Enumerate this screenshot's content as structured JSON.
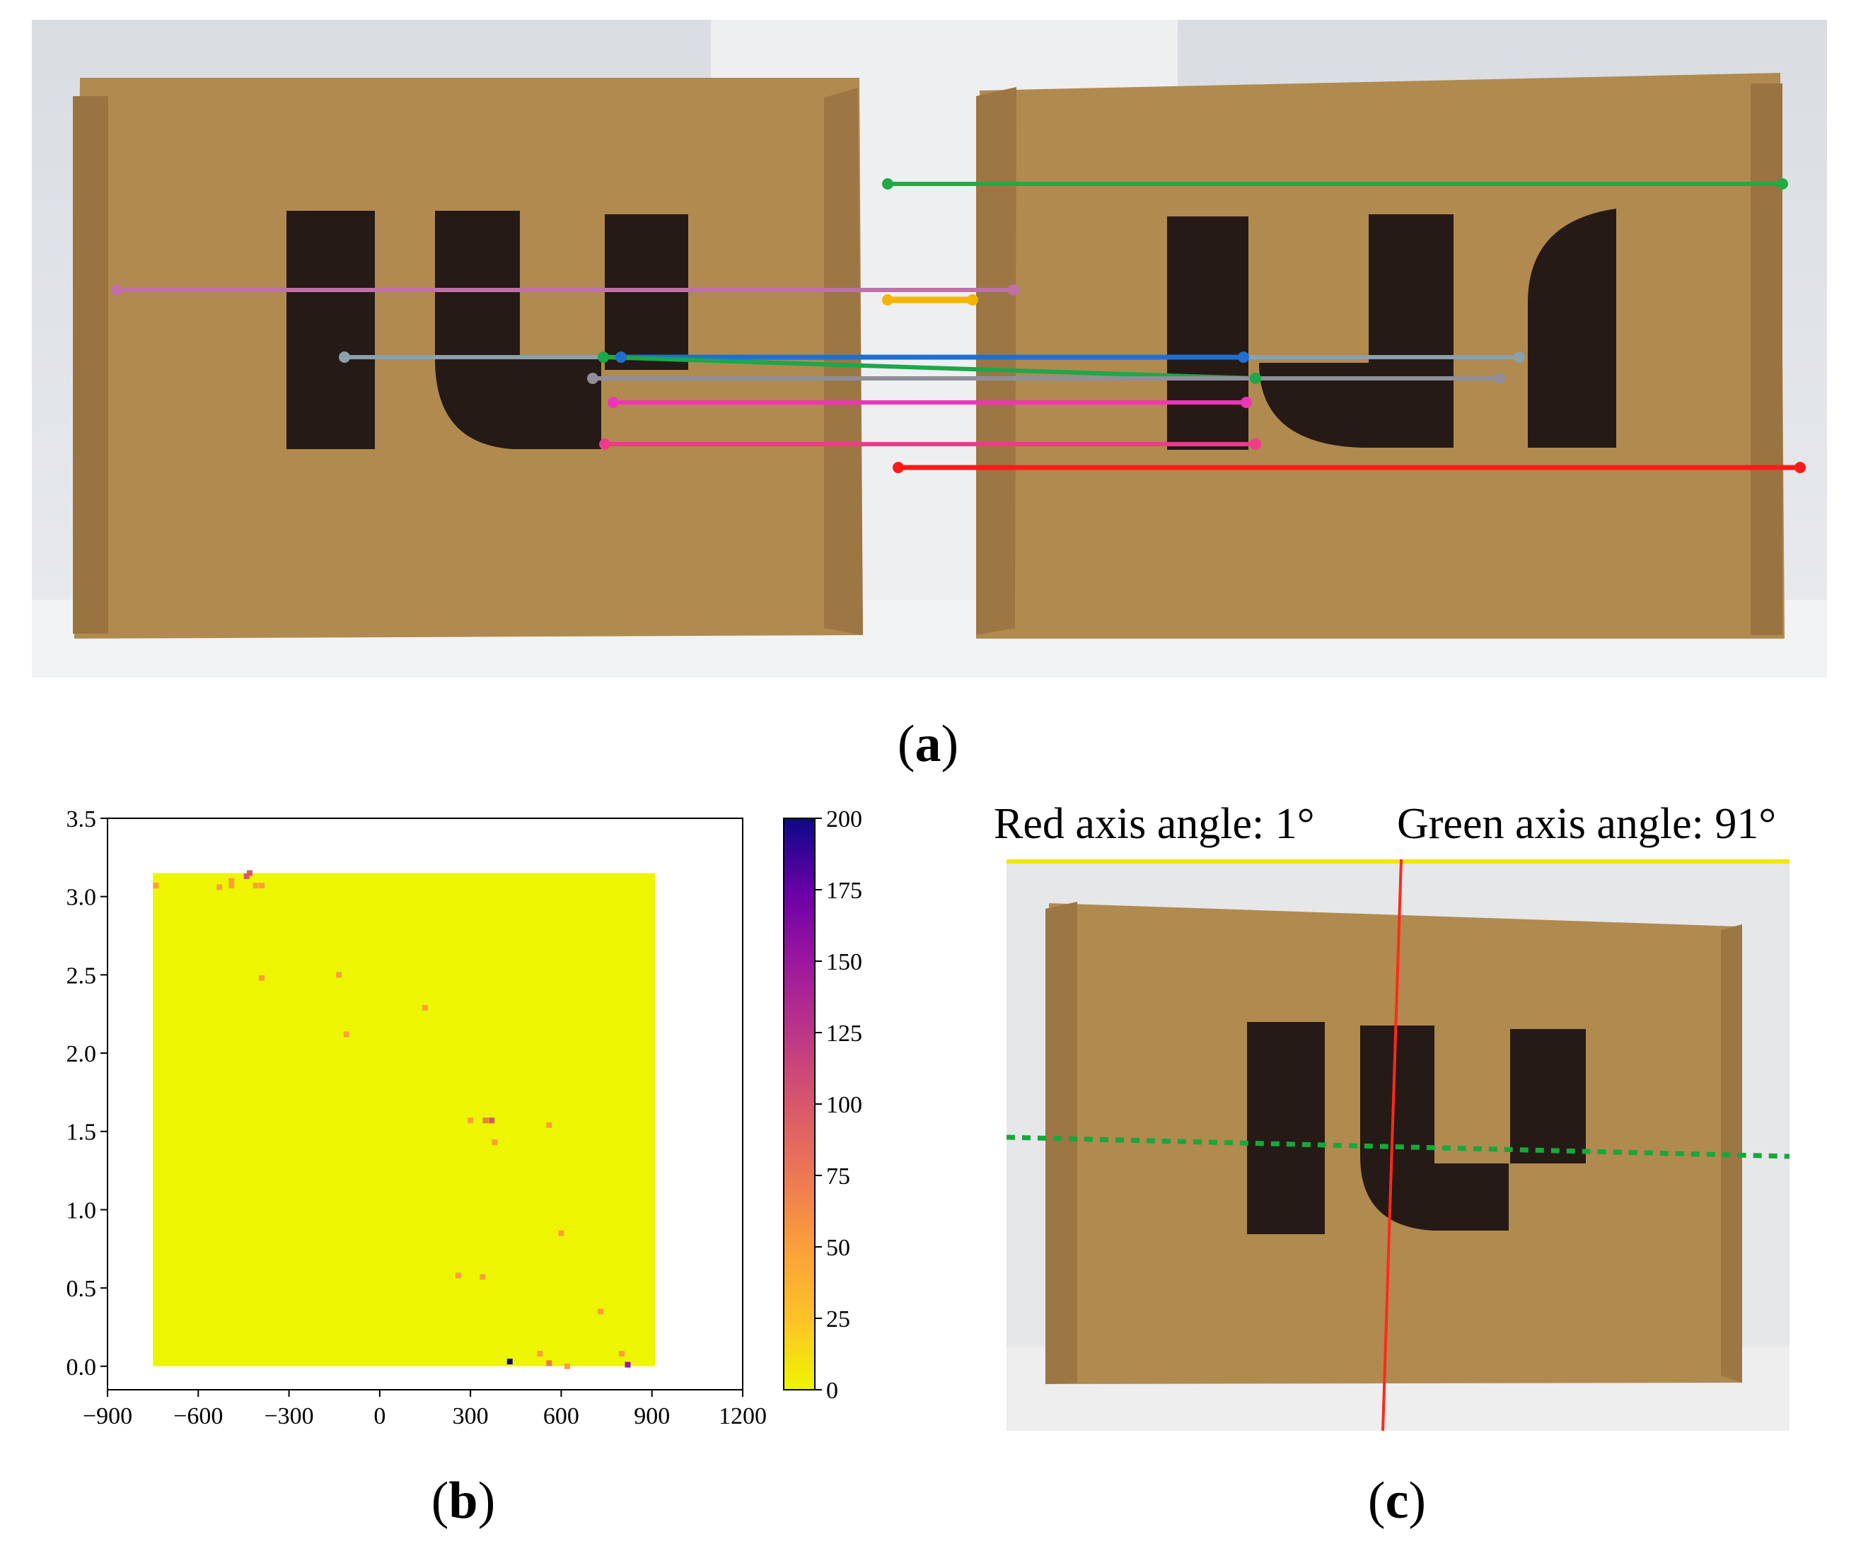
{
  "figure": {
    "labels": {
      "a": "a",
      "b": "b",
      "c": "c"
    },
    "panel_c": {
      "red_axis_text": "Red axis angle: 1°",
      "green_axis_text": "Green axis angle: 91°"
    },
    "colors": {
      "box": "#b08a4f",
      "logo": "#261a17",
      "yellow_fill": "#eef500",
      "red_axis": "#ff2a1a",
      "green_axis": "#17a83a"
    }
  },
  "chart_data": {
    "type": "heatmap",
    "title": "",
    "xlabel": "",
    "ylabel": "",
    "xlim": [
      -900,
      1200
    ],
    "ylim": [
      -0.15,
      3.5
    ],
    "xticks": [
      "−900",
      "−600",
      "−300",
      "0",
      "300",
      "600",
      "900",
      "1200"
    ],
    "xtick_values": [
      -900,
      -600,
      -300,
      0,
      300,
      600,
      900,
      1200
    ],
    "yticks": [
      "0.0",
      "0.5",
      "1.0",
      "1.5",
      "2.0",
      "2.5",
      "3.0",
      "3.5"
    ],
    "ytick_values": [
      0.0,
      0.5,
      1.0,
      1.5,
      2.0,
      2.5,
      3.0,
      3.5
    ],
    "grid": false,
    "region": {
      "x": [
        -750,
        910
      ],
      "y": [
        0.0,
        3.15
      ],
      "value": 0
    },
    "colorbar": {
      "ticks": [
        "0",
        "25",
        "50",
        "75",
        "100",
        "125",
        "150",
        "175",
        "200"
      ],
      "tick_values": [
        0,
        25,
        50,
        75,
        100,
        125,
        150,
        175,
        200
      ],
      "range": [
        0,
        200
      ],
      "colormap": "plasma_r"
    },
    "outliers": [
      {
        "x": -740,
        "y": 3.07,
        "v": 40
      },
      {
        "x": -530,
        "y": 3.06,
        "v": 40
      },
      {
        "x": -490,
        "y": 3.07,
        "v": 50
      },
      {
        "x": -490,
        "y": 3.1,
        "v": 60
      },
      {
        "x": -440,
        "y": 3.13,
        "v": 90
      },
      {
        "x": -430,
        "y": 3.15,
        "v": 110
      },
      {
        "x": -410,
        "y": 3.07,
        "v": 60
      },
      {
        "x": -390,
        "y": 3.07,
        "v": 50
      },
      {
        "x": -390,
        "y": 2.48,
        "v": 40
      },
      {
        "x": -135,
        "y": 2.5,
        "v": 45
      },
      {
        "x": -110,
        "y": 2.12,
        "v": 40
      },
      {
        "x": 150,
        "y": 2.29,
        "v": 40
      },
      {
        "x": 300,
        "y": 1.57,
        "v": 45
      },
      {
        "x": 350,
        "y": 1.57,
        "v": 70
      },
      {
        "x": 370,
        "y": 1.57,
        "v": 90
      },
      {
        "x": 380,
        "y": 1.43,
        "v": 40
      },
      {
        "x": 560,
        "y": 1.54,
        "v": 40
      },
      {
        "x": 600,
        "y": 0.85,
        "v": 40
      },
      {
        "x": 260,
        "y": 0.58,
        "v": 50
      },
      {
        "x": 340,
        "y": 0.57,
        "v": 40
      },
      {
        "x": 730,
        "y": 0.35,
        "v": 40
      },
      {
        "x": 430,
        "y": 0.03,
        "v": 200
      },
      {
        "x": 530,
        "y": 0.08,
        "v": 60
      },
      {
        "x": 560,
        "y": 0.02,
        "v": 70
      },
      {
        "x": 620,
        "y": 0.0,
        "v": 40
      },
      {
        "x": 800,
        "y": 0.08,
        "v": 50
      },
      {
        "x": 820,
        "y": 0.01,
        "v": 150
      }
    ]
  }
}
